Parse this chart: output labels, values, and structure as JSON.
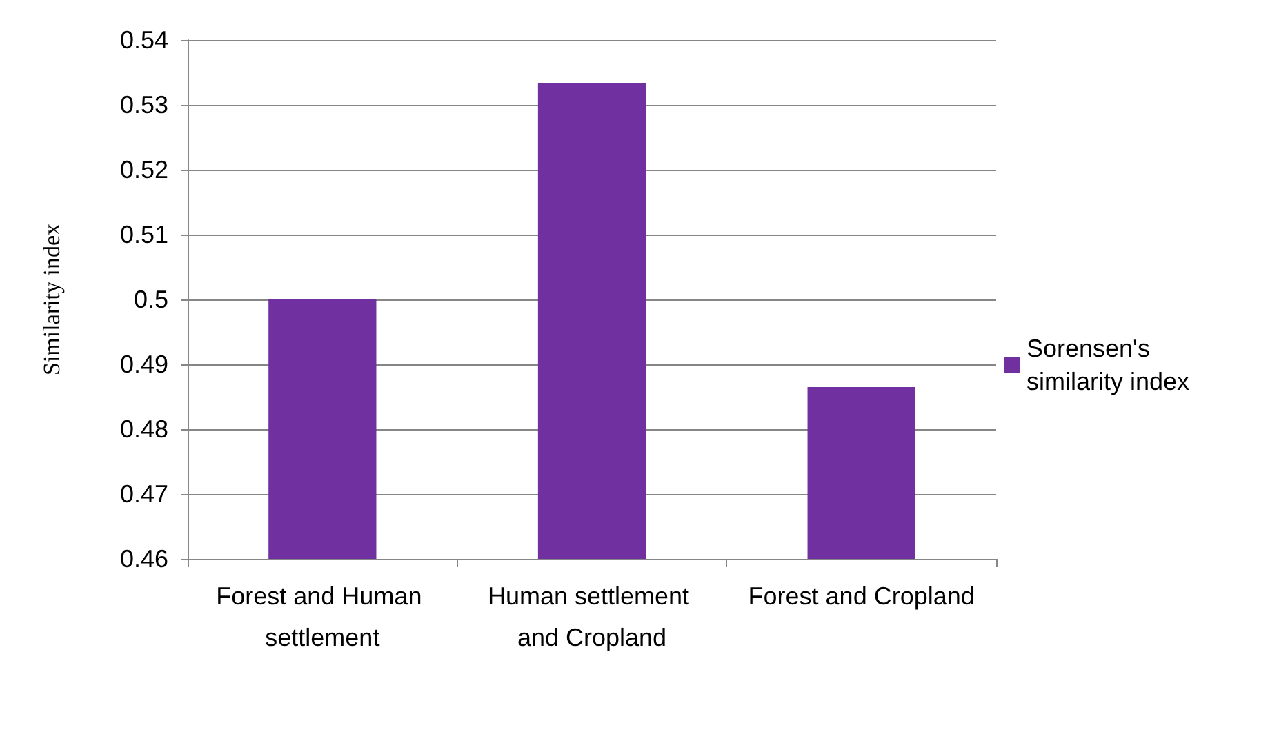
{
  "chart_data": {
    "type": "bar",
    "ylabel": "Similarity index",
    "categories": [
      "Forest and Human settlement",
      "Human settlement and Cropland",
      "Forest and Cropland"
    ],
    "series": [
      {
        "name": "Sorensen's similarity index",
        "color": "#7030a0",
        "values": [
          0.5,
          0.5333,
          0.4865
        ]
      }
    ],
    "ylim": [
      0.46,
      0.54
    ],
    "yticks": [
      0.46,
      0.47,
      0.48,
      0.49,
      0.5,
      0.51,
      0.52,
      0.53,
      0.54
    ],
    "grid": "y",
    "legend": "right"
  }
}
